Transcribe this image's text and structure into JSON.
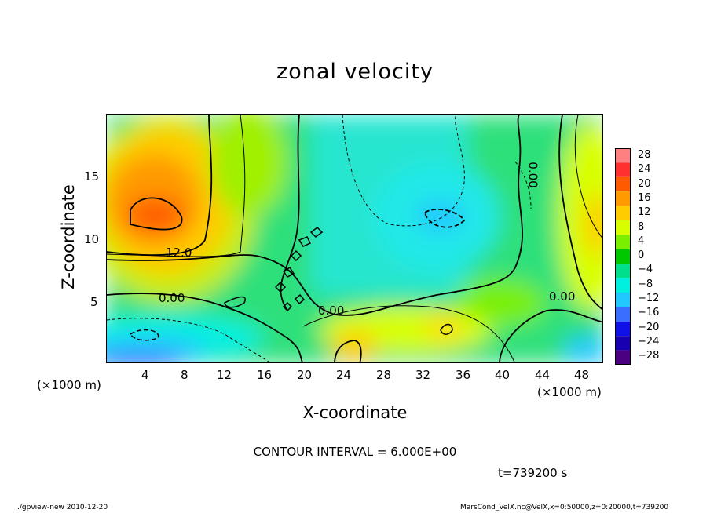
{
  "chart_data": {
    "type": "heatmap",
    "title": "zonal velocity",
    "xlabel": "X-coordinate",
    "ylabel": "Z-coordinate",
    "x_unit_label": "(×1000 m)",
    "xlim": [
      0,
      50
    ],
    "ylim": [
      0,
      20
    ],
    "x_ticks": [
      "4",
      "8",
      "12",
      "16",
      "20",
      "24",
      "28",
      "32",
      "36",
      "40",
      "44",
      "48"
    ],
    "y_ticks": [
      "5",
      "10",
      "15"
    ],
    "colorbar_levels": [
      "28",
      "24",
      "20",
      "16",
      "12",
      "8",
      "4",
      "0",
      "−4",
      "−8",
      "−12",
      "−16",
      "−20",
      "−24",
      "−28"
    ],
    "colorbar_colors": [
      "#ff8080",
      "#ff3030",
      "#ff5a00",
      "#ff9a00",
      "#ffcc00",
      "#d8ff00",
      "#7af000",
      "#00c800",
      "#00e08c",
      "#00f0e0",
      "#20c8ff",
      "#3a6eff",
      "#1010e8",
      "#1800b0",
      "#4a0080"
    ],
    "contour_labels": [
      "12.0",
      "0.00",
      "0.00",
      "0.00",
      "0.00"
    ],
    "contour_interval": "CONTOUR INTERVAL = 6.000E+00",
    "time": "t=739200 s",
    "footer_left": "./gpview-new   2010-12-20",
    "footer_right": "MarsCond_VelX.nc@VelX,x=0:50000,z=0:20000,t=739200"
  }
}
